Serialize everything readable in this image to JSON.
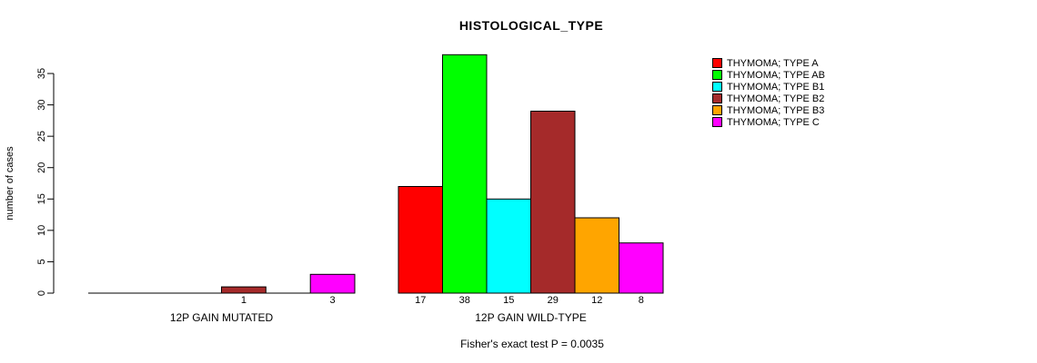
{
  "title": "HISTOLOGICAL_TYPE",
  "footer": "Fisher's exact test P = 0.0035",
  "y_axis": {
    "label": "number of cases",
    "ticks": [
      0,
      5,
      10,
      15,
      20,
      25,
      30,
      35
    ]
  },
  "legend": {
    "position": "top-right",
    "items": [
      {
        "label": "THYMOMA; TYPE A",
        "color": "#FF0000"
      },
      {
        "label": "THYMOMA; TYPE AB",
        "color": "#00FF00"
      },
      {
        "label": "THYMOMA; TYPE B1",
        "color": "#00FFFF"
      },
      {
        "label": "THYMOMA; TYPE B2",
        "color": "#A52A2A"
      },
      {
        "label": "THYMOMA; TYPE B3",
        "color": "#FFA500"
      },
      {
        "label": "THYMOMA; TYPE C",
        "color": "#FF00FF"
      }
    ]
  },
  "chart_data": {
    "type": "bar",
    "title": "HISTOLOGICAL_TYPE",
    "categories": [
      "12P GAIN MUTATED",
      "12P GAIN WILD-TYPE"
    ],
    "series": [
      {
        "name": "THYMOMA; TYPE A",
        "color": "#FF0000",
        "values": [
          0,
          17
        ]
      },
      {
        "name": "THYMOMA; TYPE AB",
        "color": "#00FF00",
        "values": [
          0,
          38
        ]
      },
      {
        "name": "THYMOMA; TYPE B1",
        "color": "#00FFFF",
        "values": [
          0,
          15
        ]
      },
      {
        "name": "THYMOMA; TYPE B2",
        "color": "#A52A2A",
        "values": [
          1,
          29
        ]
      },
      {
        "name": "THYMOMA; TYPE B3",
        "color": "#FFA500",
        "values": [
          0,
          12
        ]
      },
      {
        "name": "THYMOMA; TYPE C",
        "color": "#FF00FF",
        "values": [
          3,
          8
        ]
      }
    ],
    "xlabel": "",
    "ylabel": "number of cases",
    "ylim": [
      0,
      35
    ],
    "grid": false,
    "legend_position": "top-right",
    "bar_value_labels": "value printed below each nonzero bar",
    "annotation": "Fisher's exact test P = 0.0035"
  }
}
